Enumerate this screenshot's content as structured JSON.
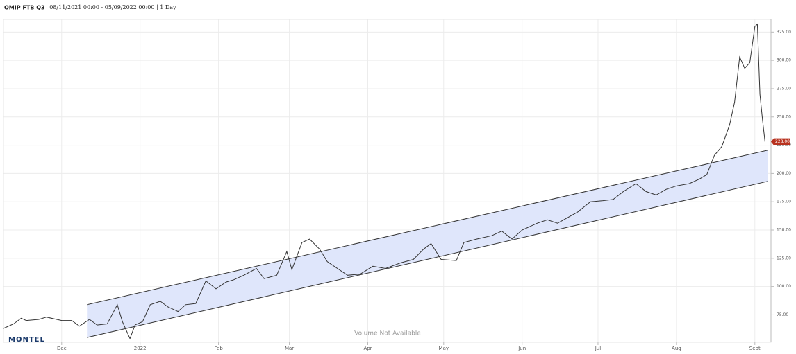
{
  "chart_data": {
    "type": "line",
    "title": "OMIP FTB Q3",
    "subtitle": "| 08/11/2021 00:00 - 05/09/2022 00:00 | 1 Day",
    "annotation": "Volume Not Available",
    "logo": "MONTEL",
    "x": [
      "2021-11-08",
      "2021-11-12",
      "2021-11-15",
      "2021-11-17",
      "2021-11-22",
      "2021-11-25",
      "2021-12-01",
      "2021-12-05",
      "2021-12-08",
      "2021-12-12",
      "2021-12-15",
      "2021-12-19",
      "2021-12-23",
      "2021-12-25",
      "2021-12-28",
      "2021-12-30",
      "2022-01-02",
      "2022-01-05",
      "2022-01-09",
      "2022-01-12",
      "2022-01-16",
      "2022-01-19",
      "2022-01-23",
      "2022-01-27",
      "2022-01-31",
      "2022-02-04",
      "2022-02-07",
      "2022-02-11",
      "2022-02-16",
      "2022-02-19",
      "2022-02-24",
      "2022-02-28",
      "2022-03-02",
      "2022-03-06",
      "2022-03-09",
      "2022-03-13",
      "2022-03-16",
      "2022-03-20",
      "2022-03-24",
      "2022-03-29",
      "2022-04-03",
      "2022-04-08",
      "2022-04-14",
      "2022-04-19",
      "2022-04-23",
      "2022-04-26",
      "2022-04-30",
      "2022-05-06",
      "2022-05-09",
      "2022-05-14",
      "2022-05-20",
      "2022-05-24",
      "2022-05-28",
      "2022-06-01",
      "2022-06-07",
      "2022-06-11",
      "2022-06-15",
      "2022-06-19",
      "2022-06-23",
      "2022-06-28",
      "2022-07-03",
      "2022-07-07",
      "2022-07-11",
      "2022-07-16",
      "2022-07-20",
      "2022-07-24",
      "2022-07-28",
      "2022-08-01",
      "2022-08-06",
      "2022-08-10",
      "2022-08-13",
      "2022-08-16",
      "2022-08-19",
      "2022-08-22",
      "2022-08-24",
      "2022-08-26",
      "2022-08-28",
      "2022-08-30",
      "2022-09-01",
      "2022-09-02",
      "2022-09-03",
      "2022-09-04",
      "2022-09-05"
    ],
    "series": [
      {
        "name": "OMIP FTB Q3",
        "color": "#333333",
        "values": [
          63,
          67,
          72,
          70,
          71,
          73,
          70,
          70,
          65,
          71,
          66,
          67,
          84,
          69,
          54,
          66,
          69,
          84,
          87,
          82,
          78,
          84,
          85,
          105,
          98,
          104,
          106,
          110,
          116,
          107,
          110,
          131,
          115,
          139,
          142,
          133,
          122,
          116,
          110,
          111,
          118,
          116,
          121,
          124,
          133,
          138,
          124,
          123,
          139,
          142,
          145,
          149,
          142,
          150,
          156,
          159,
          156,
          161,
          166,
          175,
          176,
          177,
          184,
          191,
          184,
          181,
          186,
          189,
          191,
          195,
          199,
          216,
          224,
          243,
          263,
          303,
          293,
          298,
          330,
          332,
          270,
          248,
          228
        ]
      }
    ],
    "last_value": {
      "value": 228,
      "label": "228.00"
    },
    "channel": {
      "x": [
        "2021-12-11",
        "2022-09-06"
      ],
      "upper": [
        84,
        220.5
      ],
      "lower": [
        55,
        193
      ],
      "color": "#dfe6fb"
    },
    "xlim": [
      "2021-11-08",
      "2022-09-06"
    ],
    "xticks": [
      {
        "value": "2021-12-01",
        "label": "Dec"
      },
      {
        "value": "2022-01-01",
        "label": "2022"
      },
      {
        "value": "2022-02-01",
        "label": "Feb"
      },
      {
        "value": "2022-03-01",
        "label": "Mar"
      },
      {
        "value": "2022-04-01",
        "label": "Apr"
      },
      {
        "value": "2022-05-01",
        "label": "May"
      },
      {
        "value": "2022-06-01",
        "label": "Jun"
      },
      {
        "value": "2022-07-01",
        "label": "Jul"
      },
      {
        "value": "2022-08-01",
        "label": "Aug"
      },
      {
        "value": "2022-09-01",
        "label": "Sept"
      }
    ],
    "ylim": [
      52,
      335
    ],
    "yticks": [
      {
        "value": 75,
        "label": "75.00"
      },
      {
        "value": 100,
        "label": "100.00"
      },
      {
        "value": 125,
        "label": "125.00"
      },
      {
        "value": 150,
        "label": "150.00"
      },
      {
        "value": 175,
        "label": "175.00"
      },
      {
        "value": 200,
        "label": "200.00"
      },
      {
        "value": 225,
        "label": "225.00"
      },
      {
        "value": 250,
        "label": "250.00"
      },
      {
        "value": 275,
        "label": "275.00"
      },
      {
        "value": 300,
        "label": "300.00"
      },
      {
        "value": 325,
        "label": "325.00"
      }
    ],
    "grid": true
  }
}
